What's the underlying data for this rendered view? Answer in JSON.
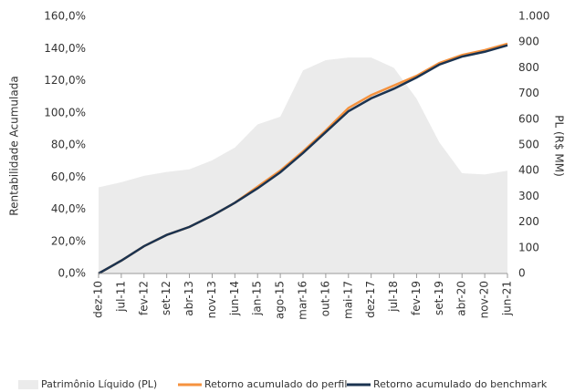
{
  "chart_data": {
    "type": "line",
    "y_label": "Rentabilidade Acumulada",
    "y2_label": "PL (R$ MM)",
    "categories": [
      "dez-10",
      "jul-11",
      "fev-12",
      "set-12",
      "abr-13",
      "nov-13",
      "jun-14",
      "jan-15",
      "ago-15",
      "mar-16",
      "out-16",
      "mai-17",
      "dez-17",
      "jul-18",
      "fev-19",
      "set-19",
      "abr-20",
      "nov-20",
      "jun-21"
    ],
    "series": [
      {
        "name": "Patrimônio Líquido (PL)",
        "type": "area",
        "axis": "y2",
        "color": "#ebebeb",
        "values": [
          335,
          355,
          380,
          395,
          405,
          440,
          490,
          580,
          610,
          790,
          830,
          840,
          840,
          800,
          680,
          510,
          390,
          385,
          400
        ]
      },
      {
        "name": "Retorno acumulado do perfil",
        "color": "#f5923e",
        "values": [
          0,
          8,
          17,
          24,
          29,
          36,
          44,
          54,
          64,
          76,
          89,
          103,
          111,
          117,
          123,
          131,
          136,
          139,
          143
        ]
      },
      {
        "name": "Retorno acumulado do benchmark",
        "color": "#1b3350",
        "values": [
          0,
          8,
          17,
          24,
          29,
          36,
          44,
          53,
          63,
          75,
          88,
          101,
          109,
          115,
          122,
          130,
          135,
          138,
          142
        ]
      }
    ],
    "ylim": [
      0,
      160
    ],
    "yticks": [
      {
        "value": 0,
        "label": "0,0%"
      },
      {
        "value": 20,
        "label": "20,0%"
      },
      {
        "value": 40,
        "label": "40,0%"
      },
      {
        "value": 60,
        "label": "60,0%"
      },
      {
        "value": 80,
        "label": "80,0%"
      },
      {
        "value": 100,
        "label": "100,0%"
      },
      {
        "value": 120,
        "label": "120,0%"
      },
      {
        "value": 140,
        "label": "140,0%"
      },
      {
        "value": 160,
        "label": "160,0%"
      }
    ],
    "y2lim": [
      0,
      1000
    ],
    "y2ticks": [
      0,
      100,
      200,
      300,
      400,
      500,
      600,
      700,
      800,
      900,
      {
        "value": 1000,
        "label": "1.000"
      }
    ],
    "legend": "bottom"
  }
}
